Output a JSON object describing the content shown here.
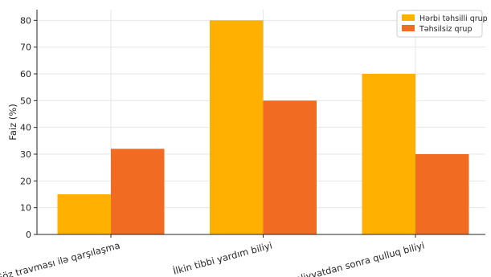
{
  "chart_data": {
    "type": "bar",
    "title": "",
    "xlabel": "",
    "ylabel": "Faiz (%)",
    "ylim": [
      0,
      84
    ],
    "yticks": [
      0,
      10,
      20,
      30,
      40,
      50,
      60,
      70,
      80
    ],
    "grid": true,
    "legend_position": "top-right",
    "categories": [
      "Göz travması ilə qarşılaşma",
      "İlkin tibbi yardım biliyi",
      "Əməliyyatdan sonra qulluq biliyi"
    ],
    "series": [
      {
        "name": "Hərbi təhsilli qrup",
        "color": "#ffb000",
        "values": [
          15,
          80,
          60
        ]
      },
      {
        "name": "Təhsilsiz qrup",
        "color": "#f26b22",
        "values": [
          32,
          50,
          30
        ]
      }
    ]
  }
}
